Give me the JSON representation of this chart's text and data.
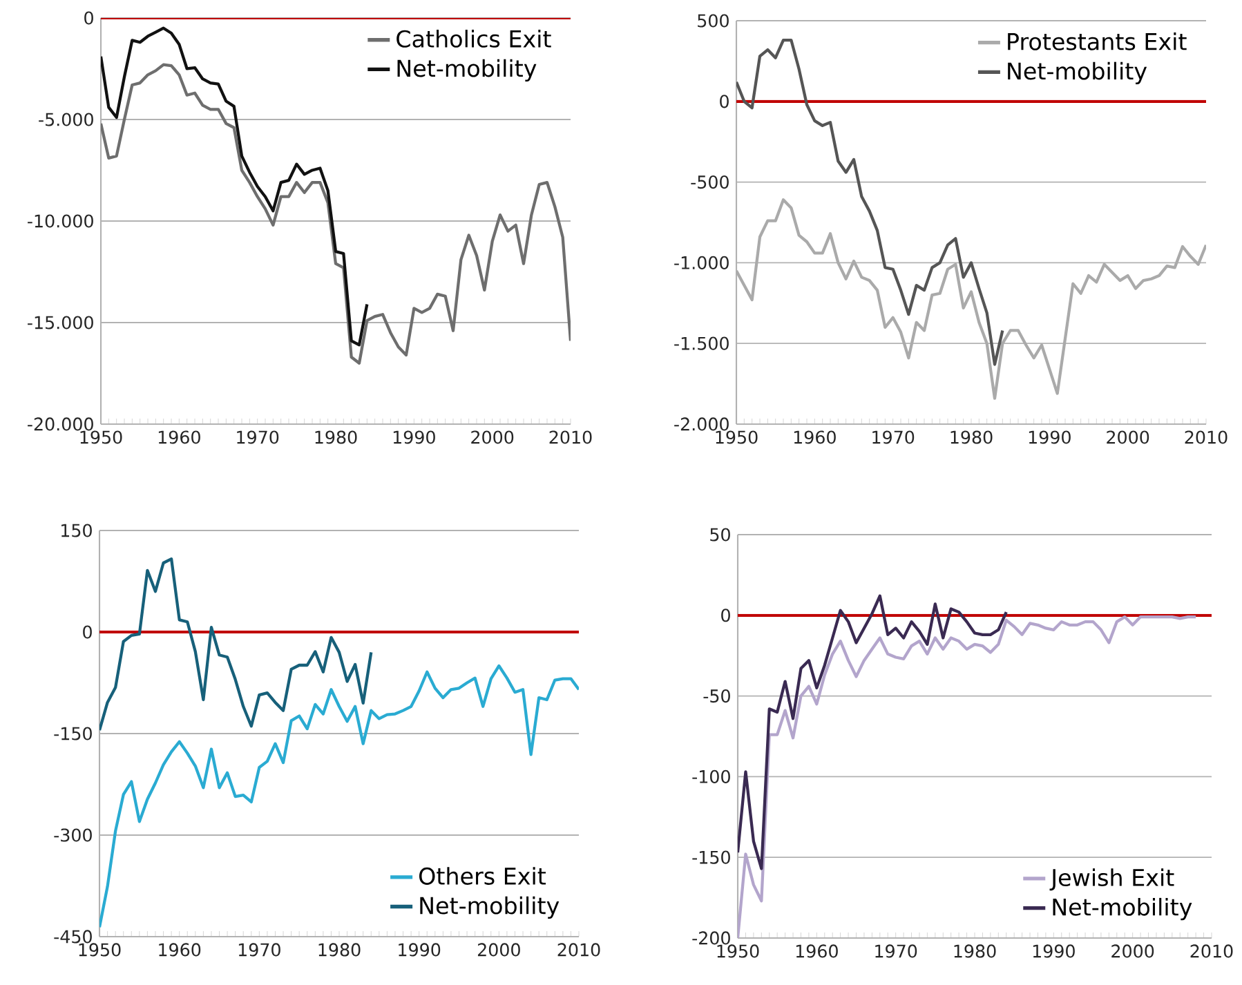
{
  "chart_data": [
    {
      "type": "line",
      "x": [
        1950,
        1951,
        1952,
        1953,
        1954,
        1955,
        1956,
        1957,
        1958,
        1959,
        1960,
        1961,
        1962,
        1963,
        1964,
        1965,
        1966,
        1967,
        1968,
        1969,
        1970,
        1971,
        1972,
        1973,
        1974,
        1975,
        1976,
        1977,
        1978,
        1979,
        1980,
        1981,
        1982,
        1983,
        1984,
        1985,
        1986,
        1987,
        1988,
        1989,
        1990,
        1991,
        1992,
        1993,
        1994,
        1995,
        1996,
        1997,
        1998,
        1999,
        2000,
        2001,
        2002,
        2003,
        2004,
        2005,
        2006,
        2007,
        2008,
        2009,
        2010
      ],
      "xlim": [
        1950,
        2010
      ],
      "xticks": [
        1950,
        1960,
        1970,
        1980,
        1990,
        2000,
        2010
      ],
      "ylim": [
        -20000,
        0
      ],
      "yticks": [
        {
          "value": -20000,
          "label": "-20.000"
        },
        {
          "value": -15000,
          "label": "-15.000"
        },
        {
          "value": -10000,
          "label": "-10.000"
        },
        {
          "value": -5000,
          "label": "-5.000"
        },
        0
      ],
      "grid": "y",
      "legend": "top right",
      "ref_lines": [
        {
          "axis": "y",
          "value": 0,
          "color": "#c00000"
        }
      ],
      "series": [
        {
          "name": "Catholics Exit",
          "color": "#6e6e6e",
          "values": [
            -5200,
            -6900,
            -6800,
            -5000,
            -3300,
            -3200,
            -2800,
            -2600,
            -2300,
            -2350,
            -2800,
            -3800,
            -3700,
            -4300,
            -4500,
            -4500,
            -5200,
            -5400,
            -7500,
            -8100,
            -8800,
            -9400,
            -10200,
            -8800,
            -8800,
            -8100,
            -8600,
            -8100,
            -8100,
            -9100,
            -12100,
            -12300,
            -16700,
            -17000,
            -14900,
            -14700,
            -14600,
            -15500,
            -16200,
            -16600,
            -14300,
            -14500,
            -14300,
            -13600,
            -13700,
            -15400,
            -11900,
            -10700,
            -11700,
            -13400,
            -11000,
            -9700,
            -10500,
            -10200,
            -12100,
            -9700,
            -8200,
            -8100,
            -9300,
            -10800,
            -15900
          ]
        },
        {
          "name": "Net-mobility",
          "color": "#111111",
          "x": [
            1950,
            1951,
            1952,
            1953,
            1954,
            1955,
            1956,
            1957,
            1958,
            1959,
            1960,
            1961,
            1962,
            1963,
            1964,
            1965,
            1966,
            1967,
            1968,
            1969,
            1970,
            1971,
            1972,
            1973,
            1974,
            1975,
            1976,
            1977,
            1978,
            1979,
            1980,
            1981,
            1982,
            1983,
            1984
          ],
          "values": [
            -1900,
            -4400,
            -4900,
            -2900,
            -1100,
            -1200,
            -900,
            -700,
            -500,
            -750,
            -1300,
            -2500,
            -2450,
            -3000,
            -3200,
            -3250,
            -4100,
            -4350,
            -6800,
            -7600,
            -8300,
            -8800,
            -9500,
            -8100,
            -8000,
            -7200,
            -7700,
            -7500,
            -7400,
            -8500,
            -11500,
            -11600,
            -15900,
            -16100,
            -14100
          ]
        }
      ]
    },
    {
      "type": "line",
      "x": [
        1950,
        1951,
        1952,
        1953,
        1954,
        1955,
        1956,
        1957,
        1958,
        1959,
        1960,
        1961,
        1962,
        1963,
        1964,
        1965,
        1966,
        1967,
        1968,
        1969,
        1970,
        1971,
        1972,
        1973,
        1974,
        1975,
        1976,
        1977,
        1978,
        1979,
        1980,
        1981,
        1982,
        1983,
        1984,
        1985,
        1986,
        1987,
        1988,
        1989,
        1990,
        1991,
        1992,
        1993,
        1994,
        1995,
        1996,
        1997,
        1998,
        1999,
        2000,
        2001,
        2002,
        2003,
        2004,
        2005,
        2006,
        2007,
        2008,
        2009,
        2010
      ],
      "xlim": [
        1950,
        2010
      ],
      "xticks": [
        1950,
        1960,
        1970,
        1980,
        1990,
        2000,
        2010
      ],
      "ylim": [
        -2000,
        500
      ],
      "yticks": [
        {
          "value": -2000,
          "label": "-2.000"
        },
        {
          "value": -1500,
          "label": "-1.500"
        },
        {
          "value": -1000,
          "label": "-1.000"
        },
        -500,
        0,
        500
      ],
      "grid": "y",
      "legend": "top right",
      "ref_lines": [
        {
          "axis": "y",
          "value": 0,
          "color": "#c00000"
        }
      ],
      "series": [
        {
          "name": "Protestants Exit",
          "color": "#aaaaaa",
          "values": [
            -1050,
            -1140,
            -1230,
            -840,
            -740,
            -740,
            -610,
            -660,
            -830,
            -870,
            -940,
            -940,
            -820,
            -1000,
            -1100,
            -990,
            -1090,
            -1110,
            -1170,
            -1400,
            -1340,
            -1430,
            -1590,
            -1370,
            -1420,
            -1200,
            -1190,
            -1040,
            -1010,
            -1280,
            -1180,
            -1370,
            -1500,
            -1840,
            -1500,
            -1420,
            -1420,
            -1510,
            -1590,
            -1510,
            -1660,
            -1810,
            -1470,
            -1130,
            -1190,
            -1080,
            -1120,
            -1010,
            -1060,
            -1110,
            -1080,
            -1160,
            -1110,
            -1100,
            -1080,
            -1020,
            -1030,
            -900,
            -960,
            -1010,
            -890
          ]
        },
        {
          "name": "Net-mobility",
          "color": "#555555",
          "x": [
            1950,
            1951,
            1952,
            1953,
            1954,
            1955,
            1956,
            1957,
            1958,
            1959,
            1960,
            1961,
            1962,
            1963,
            1964,
            1965,
            1966,
            1967,
            1968,
            1969,
            1970,
            1971,
            1972,
            1973,
            1974,
            1975,
            1976,
            1977,
            1978,
            1979,
            1980,
            1981,
            1982,
            1983,
            1984
          ],
          "values": [
            120,
            0,
            -40,
            280,
            320,
            270,
            380,
            380,
            200,
            -20,
            -120,
            -150,
            -130,
            -370,
            -440,
            -360,
            -590,
            -680,
            -800,
            -1030,
            -1040,
            -1170,
            -1320,
            -1140,
            -1170,
            -1030,
            -1000,
            -890,
            -850,
            -1090,
            -1000,
            -1160,
            -1310,
            -1630,
            -1420
          ]
        }
      ]
    },
    {
      "type": "line",
      "x": [
        1950,
        1951,
        1952,
        1953,
        1954,
        1955,
        1956,
        1957,
        1958,
        1959,
        1960,
        1961,
        1962,
        1963,
        1964,
        1965,
        1966,
        1967,
        1968,
        1969,
        1970,
        1971,
        1972,
        1973,
        1974,
        1975,
        1976,
        1977,
        1978,
        1979,
        1980,
        1981,
        1982,
        1983,
        1984,
        1985,
        1986,
        1987,
        1988,
        1989,
        1990,
        1991,
        1992,
        1993,
        1994,
        1995,
        1996,
        1997,
        1998,
        1999,
        2000,
        2001,
        2002,
        2003,
        2004,
        2005,
        2006,
        2007,
        2008,
        2009,
        2010
      ],
      "xlim": [
        1950,
        2010
      ],
      "xticks": [
        1950,
        1960,
        1970,
        1980,
        1990,
        2000,
        2010
      ],
      "ylim": [
        -450,
        150
      ],
      "yticks": [
        -450,
        -300,
        -150,
        0,
        150
      ],
      "grid": "y",
      "legend": "bottom right",
      "ref_lines": [
        {
          "axis": "y",
          "value": 0,
          "color": "#c00000"
        }
      ],
      "series": [
        {
          "name": "Others Exit",
          "color": "#2aabd2",
          "values": [
            -436,
            -376,
            -294,
            -240,
            -221,
            -280,
            -247,
            -223,
            -196,
            -177,
            -162,
            -179,
            -198,
            -230,
            -173,
            -230,
            -208,
            -243,
            -241,
            -251,
            -200,
            -191,
            -165,
            -193,
            -131,
            -124,
            -143,
            -107,
            -121,
            -85,
            -110,
            -132,
            -110,
            -165,
            -116,
            -128,
            -122,
            -121,
            -116,
            -110,
            -87,
            -59,
            -83,
            -97,
            -85,
            -83,
            -75,
            -68,
            -110,
            -69,
            -50,
            -68,
            -89,
            -85,
            -181,
            -97,
            -100,
            -71,
            -69,
            -69,
            -85
          ]
        },
        {
          "name": "Net-mobility",
          "color": "#17607a",
          "x": [
            1950,
            1951,
            1952,
            1953,
            1954,
            1955,
            1956,
            1957,
            1958,
            1959,
            1960,
            1961,
            1962,
            1963,
            1964,
            1965,
            1966,
            1967,
            1968,
            1969,
            1970,
            1971,
            1972,
            1973,
            1974,
            1975,
            1976,
            1977,
            1978,
            1979,
            1980,
            1981,
            1982,
            1983,
            1984
          ],
          "values": [
            -145,
            -104,
            -82,
            -14,
            -5,
            -3,
            91,
            60,
            102,
            108,
            18,
            15,
            -29,
            -100,
            7,
            -34,
            -37,
            -70,
            -110,
            -139,
            -93,
            -90,
            -104,
            -116,
            -55,
            -49,
            -49,
            -29,
            -59,
            -8,
            -30,
            -73,
            -48,
            -105,
            -30
          ]
        }
      ]
    },
    {
      "type": "line",
      "x": [
        1950,
        1951,
        1952,
        1953,
        1954,
        1955,
        1956,
        1957,
        1958,
        1959,
        1960,
        1961,
        1962,
        1963,
        1964,
        1965,
        1966,
        1967,
        1968,
        1969,
        1970,
        1971,
        1972,
        1973,
        1974,
        1975,
        1976,
        1977,
        1978,
        1979,
        1980,
        1981,
        1982,
        1983,
        1984,
        1985,
        1986,
        1987,
        1988,
        1989,
        1990,
        1991,
        1992,
        1993,
        1994,
        1995,
        1996,
        1997,
        1998,
        1999,
        2000,
        2001,
        2002,
        2003,
        2004,
        2005,
        2006,
        2007,
        2008
      ],
      "xlim": [
        1950,
        2010
      ],
      "xticks": [
        1950,
        1960,
        1970,
        1980,
        1990,
        2000,
        2010
      ],
      "ylim": [
        -200,
        50
      ],
      "yticks": [
        -200,
        -150,
        -100,
        -50,
        0,
        50
      ],
      "grid": "y",
      "legend": "bottom right",
      "ref_lines": [
        {
          "axis": "y",
          "value": 0,
          "color": "#c00000"
        }
      ],
      "series": [
        {
          "name": "Jewish Exit",
          "color": "#b3a5cc",
          "values": [
            -200,
            -148,
            -167,
            -177,
            -74,
            -74,
            -59,
            -76,
            -50,
            -44,
            -55,
            -37,
            -24,
            -16,
            -28,
            -38,
            -28,
            -21,
            -14,
            -24,
            -26,
            -27,
            -19,
            -16,
            -24,
            -14,
            -21,
            -14,
            -16,
            -21,
            -18,
            -19,
            -23,
            -18,
            -3,
            -7,
            -12,
            -5,
            -6,
            -8,
            -9,
            -4,
            -6,
            -6,
            -4,
            -4,
            -9,
            -17,
            -4,
            -1,
            -6,
            -1,
            -1,
            -1,
            -1,
            -1,
            -2,
            -1,
            -1
          ]
        },
        {
          "name": "Net-mobility",
          "color": "#3a2a52",
          "x": [
            1950,
            1951,
            1952,
            1953,
            1954,
            1955,
            1956,
            1957,
            1958,
            1959,
            1960,
            1961,
            1962,
            1963,
            1964,
            1965,
            1966,
            1967,
            1968,
            1969,
            1970,
            1971,
            1972,
            1973,
            1974,
            1975,
            1976,
            1977,
            1978,
            1979,
            1980,
            1981,
            1982,
            1983,
            1984
          ],
          "values": [
            -147,
            -97,
            -140,
            -157,
            -58,
            -60,
            -41,
            -64,
            -33,
            -28,
            -45,
            -31,
            -14,
            3,
            -4,
            -17,
            -8,
            1,
            12,
            -12,
            -8,
            -14,
            -4,
            -10,
            -18,
            7,
            -14,
            4,
            2,
            -4,
            -11,
            -12,
            -12,
            -9,
            2
          ]
        }
      ]
    }
  ]
}
